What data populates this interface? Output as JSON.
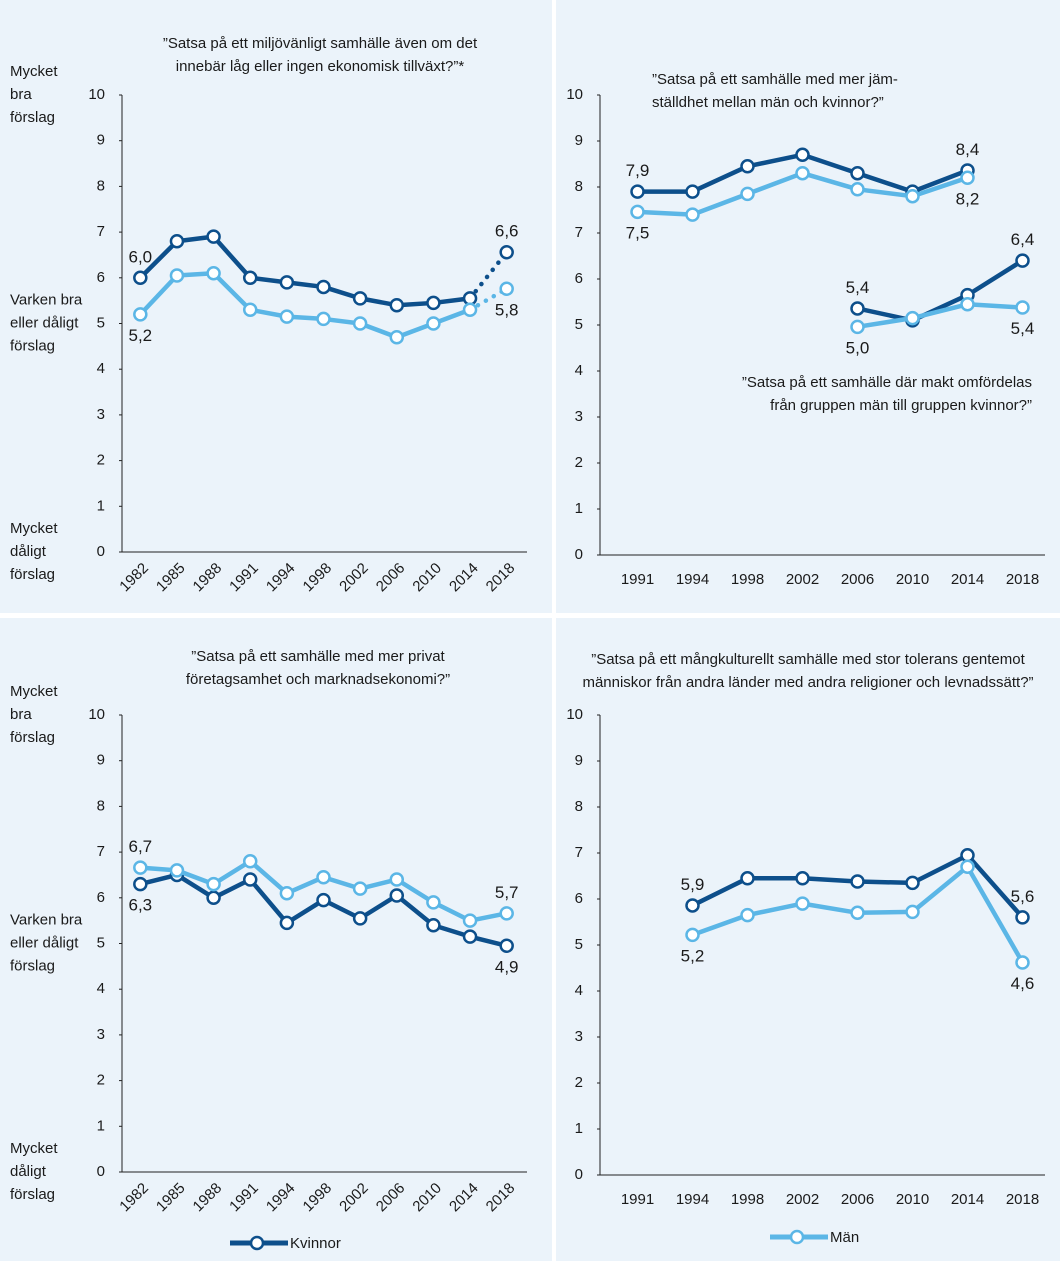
{
  "chart_data": [
    {
      "type": "line",
      "title": [
        "”Satsa på ett miljövänligt samhälle även om det",
        "innebär låg eller ingen ekonomisk tillväxt?”*"
      ],
      "scale_labels": [
        [
          "Mycket",
          "bra",
          "förslag"
        ],
        [
          "Varken bra",
          "eller dåligt",
          "förslag"
        ],
        [
          "Mycket",
          "dåligt",
          "förslag"
        ]
      ],
      "categories": [
        "1982",
        "1985",
        "1988",
        "1991",
        "1994",
        "1998",
        "2002",
        "2006",
        "2010",
        "2014",
        "2018"
      ],
      "ylim": [
        0,
        10
      ],
      "yticks": [
        0,
        1,
        2,
        3,
        4,
        5,
        6,
        7,
        8,
        9,
        10
      ],
      "dotted_last_segment": true,
      "series": [
        {
          "name": "Kvinnor",
          "color": "#0d4f8b",
          "label_side": "above",
          "values": [
            6.0,
            6.8,
            6.9,
            6.0,
            5.9,
            5.8,
            5.55,
            5.4,
            5.45,
            5.55,
            6.56
          ],
          "value_labels": [
            "6,0",
            null,
            null,
            null,
            null,
            null,
            null,
            null,
            null,
            null,
            "6,6"
          ]
        },
        {
          "name": "Män",
          "color": "#5bb6e6",
          "label_side": "below",
          "values": [
            5.2,
            6.05,
            6.1,
            5.3,
            5.15,
            5.1,
            5.0,
            4.7,
            5.0,
            5.3,
            5.76
          ],
          "value_labels": [
            "5,2",
            null,
            null,
            null,
            null,
            null,
            null,
            null,
            null,
            null,
            "5,8"
          ]
        }
      ]
    },
    {
      "type": "line",
      "title": [
        "”Satsa på ett samhälle med mer jäm-",
        "ställdhet mellan män och kvinnor?”"
      ],
      "subtitle": [
        "”Satsa på ett samhälle där makt omfördelas",
        "från gruppen män till gruppen kvinnor?”"
      ],
      "categories": [
        "1991",
        "1994",
        "1998",
        "2002",
        "2006",
        "2010",
        "2014",
        "2018"
      ],
      "ylim": [
        0,
        10
      ],
      "yticks": [
        0,
        1,
        2,
        3,
        4,
        5,
        6,
        7,
        8,
        9,
        10
      ],
      "series": [
        {
          "name": "Kvinnor",
          "color": "#0d4f8b",
          "label_side": "above",
          "values": [
            7.9,
            7.9,
            8.45,
            8.7,
            8.3,
            7.9,
            8.36,
            null
          ],
          "value_labels": [
            "7,9",
            null,
            null,
            null,
            null,
            null,
            "8,4",
            null
          ]
        },
        {
          "name": "Män",
          "color": "#5bb6e6",
          "label_side": "below",
          "values": [
            7.46,
            7.4,
            7.85,
            8.3,
            7.95,
            7.8,
            8.2,
            null
          ],
          "value_labels": [
            "7,5",
            null,
            null,
            null,
            null,
            null,
            "8,2",
            null
          ]
        },
        {
          "name": "Kvinnor",
          "color": "#0d4f8b",
          "label_side": "above",
          "values": [
            null,
            null,
            null,
            null,
            5.36,
            5.1,
            5.65,
            6.4
          ],
          "value_labels": [
            null,
            null,
            null,
            null,
            "5,4",
            null,
            null,
            "6,4"
          ]
        },
        {
          "name": "Män",
          "color": "#5bb6e6",
          "label_side": "below",
          "values": [
            null,
            null,
            null,
            null,
            4.96,
            5.15,
            5.45,
            5.38
          ],
          "value_labels": [
            null,
            null,
            null,
            null,
            "5,0",
            null,
            null,
            "5,4"
          ]
        }
      ]
    },
    {
      "type": "line",
      "title": [
        "”Satsa på ett samhälle med mer privat",
        "företagsamhet och marknadsekonomi?”"
      ],
      "scale_labels": [
        [
          "Mycket",
          "bra",
          "förslag"
        ],
        [
          "Varken bra",
          "eller dåligt",
          "förslag"
        ],
        [
          "Mycket",
          "dåligt",
          "förslag"
        ]
      ],
      "categories": [
        "1982",
        "1985",
        "1988",
        "1991",
        "1994",
        "1998",
        "2002",
        "2006",
        "2010",
        "2014",
        "2018"
      ],
      "ylim": [
        0,
        10
      ],
      "yticks": [
        0,
        1,
        2,
        3,
        4,
        5,
        6,
        7,
        8,
        9,
        10
      ],
      "series": [
        {
          "name": "Kvinnor",
          "color": "#0d4f8b",
          "label_side": "below",
          "values": [
            6.3,
            6.5,
            6.0,
            6.4,
            5.45,
            5.95,
            5.55,
            6.05,
            5.4,
            5.15,
            4.95
          ],
          "value_labels": [
            "6,3",
            null,
            null,
            null,
            null,
            null,
            null,
            null,
            null,
            null,
            "4,9"
          ]
        },
        {
          "name": "Män",
          "color": "#5bb6e6",
          "label_side": "above",
          "values": [
            6.66,
            6.6,
            6.3,
            6.8,
            6.1,
            6.45,
            6.2,
            6.4,
            5.9,
            5.5,
            5.66
          ],
          "value_labels": [
            "6,7",
            null,
            null,
            null,
            null,
            null,
            null,
            null,
            null,
            null,
            "5,7"
          ]
        }
      ]
    },
    {
      "type": "line",
      "title": [
        "”Satsa på ett mångkulturellt samhälle med stor tolerans gentemot",
        "människor från andra länder med andra religioner och levnadssätt?”"
      ],
      "categories": [
        "1991",
        "1994",
        "1998",
        "2002",
        "2006",
        "2010",
        "2014",
        "2018"
      ],
      "ylim": [
        0,
        10
      ],
      "yticks": [
        0,
        1,
        2,
        3,
        4,
        5,
        6,
        7,
        8,
        9,
        10
      ],
      "series": [
        {
          "name": "Kvinnor",
          "color": "#0d4f8b",
          "label_side": "above",
          "values": [
            null,
            5.86,
            6.45,
            6.45,
            6.38,
            6.35,
            6.95,
            5.6
          ],
          "value_labels": [
            null,
            "5,9",
            null,
            null,
            null,
            null,
            null,
            "5,6"
          ]
        },
        {
          "name": "Män",
          "color": "#5bb6e6",
          "label_side": "below",
          "values": [
            null,
            5.22,
            5.65,
            5.9,
            5.7,
            5.72,
            6.7,
            4.62
          ],
          "value_labels": [
            null,
            "5,2",
            null,
            null,
            null,
            null,
            null,
            "4,6"
          ]
        }
      ]
    }
  ]
}
